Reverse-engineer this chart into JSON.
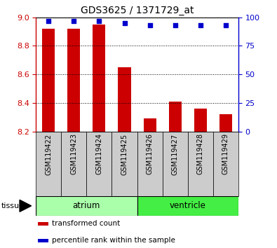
{
  "title": "GDS3625 / 1371729_at",
  "samples": [
    "GSM119422",
    "GSM119423",
    "GSM119424",
    "GSM119425",
    "GSM119426",
    "GSM119427",
    "GSM119428",
    "GSM119429"
  ],
  "red_values": [
    8.92,
    8.92,
    8.95,
    8.65,
    8.29,
    8.41,
    8.36,
    8.32
  ],
  "blue_values": [
    97,
    97,
    97,
    95,
    93,
    93,
    93,
    93
  ],
  "ylim_left": [
    8.2,
    9.0
  ],
  "ylim_right": [
    0,
    100
  ],
  "yticks_left": [
    8.2,
    8.4,
    8.6,
    8.8,
    9.0
  ],
  "yticks_right": [
    0,
    25,
    50,
    75,
    100
  ],
  "groups": [
    {
      "label": "atrium",
      "start": 0,
      "end": 4,
      "color": "#aaffaa"
    },
    {
      "label": "ventricle",
      "start": 4,
      "end": 8,
      "color": "#44ee44"
    }
  ],
  "bar_color": "#cc0000",
  "dot_color": "#0000cc",
  "bar_bottom": 8.2,
  "grid_color": "#000000",
  "bg_color": "#ffffff",
  "tick_label_color_left": "#cc0000",
  "tick_label_color_right": "#0000cc",
  "legend_items": [
    {
      "color": "#cc0000",
      "label": "transformed count"
    },
    {
      "color": "#0000cc",
      "label": "percentile rank within the sample"
    }
  ],
  "tissue_label": "tissue",
  "figsize": [
    3.95,
    3.54
  ],
  "xtick_box_color": "#cccccc"
}
